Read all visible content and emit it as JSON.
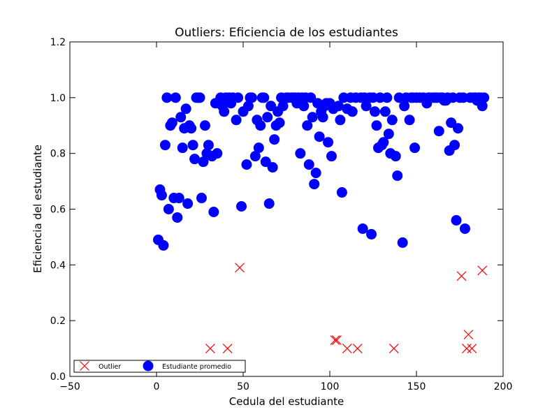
{
  "chart_data": {
    "type": "scatter",
    "title": "Outliers: Eficiencia de los estudiantes",
    "xlabel": "Cedula del estudiante",
    "ylabel": "Eficiencia del estudiante",
    "xlim": [
      -50,
      200
    ],
    "ylim": [
      0.0,
      1.2
    ],
    "x_ticks": [
      -50,
      0,
      50,
      100,
      150,
      200
    ],
    "y_ticks": [
      0.0,
      0.2,
      0.4,
      0.6,
      0.8,
      1.0,
      1.2
    ],
    "x_tick_labels": [
      "−50",
      "0",
      "50",
      "100",
      "150",
      "200"
    ],
    "y_tick_labels": [
      "0.0",
      "0.2",
      "0.4",
      "0.6",
      "0.8",
      "1.0",
      "1.2"
    ],
    "grid": false,
    "legend_position": "lower-left",
    "colors": {
      "outlier": "#ff0000",
      "average": "#0000ff"
    },
    "series": [
      {
        "name": "Outlier",
        "marker": "x",
        "color": "#ff0000",
        "points": [
          [
            31,
            0.1
          ],
          [
            41,
            0.1
          ],
          [
            48,
            0.39
          ],
          [
            103,
            0.13
          ],
          [
            104,
            0.13
          ],
          [
            110,
            0.1
          ],
          [
            116,
            0.1
          ],
          [
            137,
            0.1
          ],
          [
            176,
            0.36
          ],
          [
            179,
            0.1
          ],
          [
            180,
            0.15
          ],
          [
            182,
            0.1
          ],
          [
            188,
            0.38
          ]
        ]
      },
      {
        "name": "Estudiante promedio",
        "marker": "o",
        "color": "#0000ff",
        "points": [
          [
            1,
            0.49
          ],
          [
            2,
            0.67
          ],
          [
            3,
            0.65
          ],
          [
            4,
            0.47
          ],
          [
            5,
            0.83
          ],
          [
            6,
            1.0
          ],
          [
            7,
            0.6
          ],
          [
            8,
            0.9
          ],
          [
            9,
            0.91
          ],
          [
            10,
            0.64
          ],
          [
            11,
            1.0
          ],
          [
            12,
            0.57
          ],
          [
            13,
            0.64
          ],
          [
            14,
            0.93
          ],
          [
            15,
            0.82
          ],
          [
            16,
            0.89
          ],
          [
            17,
            0.96
          ],
          [
            18,
            0.62
          ],
          [
            19,
            0.9
          ],
          [
            20,
            0.89
          ],
          [
            21,
            0.83
          ],
          [
            22,
            0.78
          ],
          [
            23,
            1.0
          ],
          [
            24,
            1.0
          ],
          [
            25,
            1.0
          ],
          [
            26,
            0.64
          ],
          [
            27,
            0.77
          ],
          [
            28,
            0.9
          ],
          [
            29,
            0.8
          ],
          [
            30,
            0.83
          ],
          [
            32,
            0.79
          ],
          [
            33,
            0.59
          ],
          [
            34,
            0.98
          ],
          [
            35,
            0.8
          ],
          [
            37,
            1.0
          ],
          [
            38,
            0.97
          ],
          [
            39,
            0.95
          ],
          [
            40,
            1.0
          ],
          [
            42,
            1.0
          ],
          [
            43,
            0.98
          ],
          [
            44,
            1.0
          ],
          [
            46,
            0.92
          ],
          [
            47,
            1.0
          ],
          [
            49,
            0.61
          ],
          [
            50,
            0.95
          ],
          [
            52,
            0.76
          ],
          [
            53,
            0.97
          ],
          [
            54,
            1.0
          ],
          [
            55,
            1.0
          ],
          [
            57,
            0.79
          ],
          [
            58,
            0.92
          ],
          [
            59,
            0.82
          ],
          [
            60,
            0.9
          ],
          [
            61,
            1.0
          ],
          [
            62,
            1.0
          ],
          [
            63,
            0.77
          ],
          [
            64,
            0.93
          ],
          [
            65,
            0.62
          ],
          [
            66,
            0.97
          ],
          [
            67,
            0.75
          ],
          [
            68,
            0.85
          ],
          [
            69,
            0.9
          ],
          [
            70,
            0.95
          ],
          [
            71,
            0.91
          ],
          [
            72,
            1.0
          ],
          [
            73,
            0.97
          ],
          [
            75,
            1.0
          ],
          [
            76,
            1.0
          ],
          [
            78,
            1.0
          ],
          [
            79,
            1.0
          ],
          [
            80,
            1.0
          ],
          [
            81,
            0.98
          ],
          [
            82,
            1.0
          ],
          [
            83,
            0.8
          ],
          [
            84,
            1.0
          ],
          [
            85,
            0.97
          ],
          [
            86,
            1.0
          ],
          [
            87,
            0.9
          ],
          [
            88,
            0.76
          ],
          [
            89,
            1.0
          ],
          [
            90,
            0.93
          ],
          [
            91,
            0.69
          ],
          [
            92,
            0.73
          ],
          [
            93,
            0.98
          ],
          [
            94,
            0.86
          ],
          [
            95,
            0.95
          ],
          [
            96,
            0.93
          ],
          [
            97,
            0.97
          ],
          [
            98,
            0.98
          ],
          [
            99,
            0.84
          ],
          [
            100,
            0.98
          ],
          [
            101,
            0.79
          ],
          [
            102,
            0.96
          ],
          [
            105,
            0.97
          ],
          [
            106,
            0.92
          ],
          [
            107,
            0.66
          ],
          [
            108,
            1.0
          ],
          [
            110,
            0.96
          ],
          [
            112,
            1.0
          ],
          [
            113,
            0.95
          ],
          [
            115,
            1.0
          ],
          [
            118,
            1.0
          ],
          [
            119,
            0.53
          ],
          [
            120,
            1.0
          ],
          [
            121,
            0.97
          ],
          [
            123,
            1.0
          ],
          [
            124,
            0.51
          ],
          [
            125,
            1.0
          ],
          [
            126,
            0.95
          ],
          [
            127,
            0.9
          ],
          [
            128,
            0.82
          ],
          [
            129,
            1.0
          ],
          [
            130,
            0.83
          ],
          [
            131,
            0.84
          ],
          [
            132,
            0.95
          ],
          [
            133,
            1.0
          ],
          [
            134,
            0.87
          ],
          [
            135,
            0.8
          ],
          [
            136,
            0.92
          ],
          [
            138,
            0.79
          ],
          [
            139,
            0.72
          ],
          [
            140,
            1.0
          ],
          [
            142,
            0.48
          ],
          [
            143,
            0.97
          ],
          [
            144,
            1.0
          ],
          [
            146,
            0.92
          ],
          [
            147,
            1.0
          ],
          [
            148,
            1.0
          ],
          [
            149,
            0.82
          ],
          [
            150,
            1.0
          ],
          [
            152,
            1.0
          ],
          [
            154,
            1.0
          ],
          [
            156,
            0.98
          ],
          [
            157,
            1.0
          ],
          [
            158,
            1.0
          ],
          [
            160,
            1.0
          ],
          [
            161,
            1.0
          ],
          [
            162,
            1.0
          ],
          [
            163,
            0.88
          ],
          [
            164,
            1.0
          ],
          [
            165,
            1.0
          ],
          [
            166,
            0.99
          ],
          [
            167,
            0.99
          ],
          [
            168,
            1.0
          ],
          [
            169,
            0.81
          ],
          [
            170,
            0.91
          ],
          [
            171,
            1.0
          ],
          [
            172,
            0.83
          ],
          [
            173,
            0.56
          ],
          [
            174,
            0.89
          ],
          [
            175,
            1.0
          ],
          [
            177,
            1.0
          ],
          [
            178,
            0.53
          ],
          [
            181,
            1.0
          ],
          [
            183,
            1.0
          ],
          [
            184,
            1.0
          ],
          [
            185,
            0.99
          ],
          [
            186,
            1.0
          ],
          [
            187,
            1.0
          ],
          [
            188,
            0.97
          ],
          [
            189,
            1.0
          ]
        ]
      }
    ]
  }
}
